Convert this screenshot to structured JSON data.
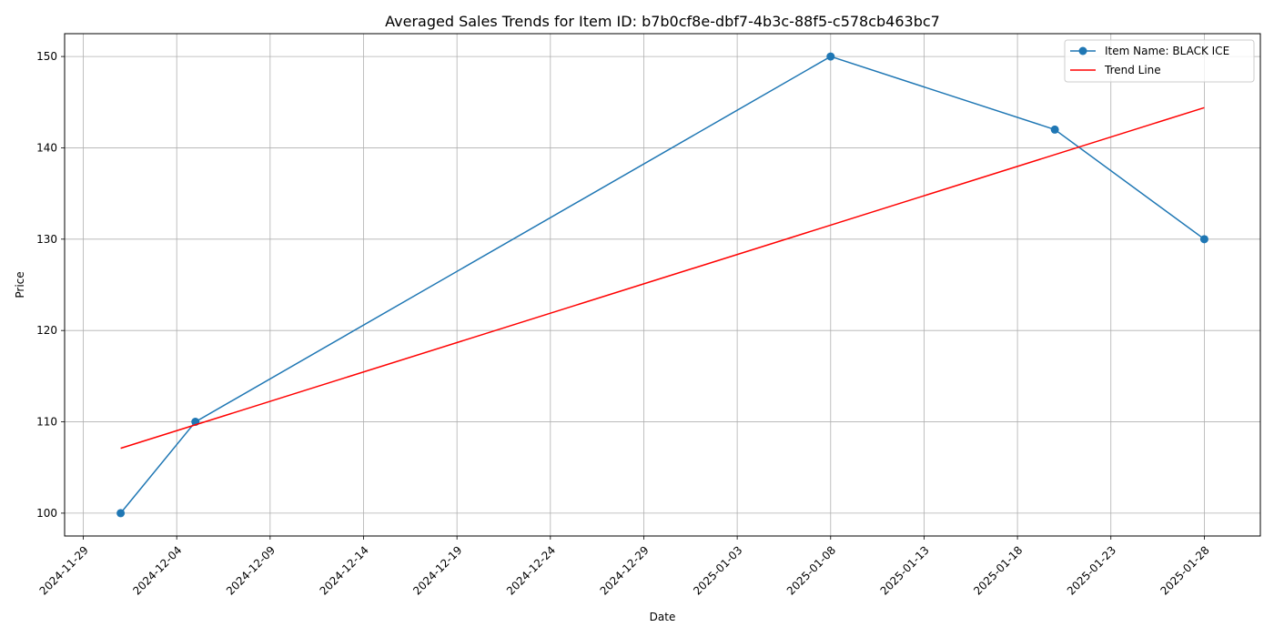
{
  "chart_data": {
    "type": "line",
    "title": "Averaged Sales Trends for Item ID: b7b0cf8e-dbf7-4b3c-88f5-c578cb463bc7",
    "xlabel": "Date",
    "ylabel": "Price",
    "grid": true,
    "legend_position": "top-right",
    "x_ticks": [
      "2024-11-29",
      "2024-12-04",
      "2024-12-09",
      "2024-12-14",
      "2024-12-19",
      "2024-12-24",
      "2024-12-29",
      "2025-01-03",
      "2025-01-08",
      "2025-01-13",
      "2025-01-18",
      "2025-01-23",
      "2025-01-28"
    ],
    "y_ticks": [
      100,
      110,
      120,
      130,
      140,
      150
    ],
    "xlim": [
      "2024-11-28",
      "2025-01-31"
    ],
    "ylim": [
      97.5,
      152.5
    ],
    "series": [
      {
        "name": "Item Name: BLACK ICE",
        "color": "#1f77b4",
        "marker": "circle",
        "points": [
          {
            "x": "2024-12-01",
            "y": 100
          },
          {
            "x": "2024-12-05",
            "y": 110
          },
          {
            "x": "2025-01-08",
            "y": 150
          },
          {
            "x": "2025-01-20",
            "y": 142
          },
          {
            "x": "2025-01-28",
            "y": 130
          }
        ]
      },
      {
        "name": "Trend Line",
        "color": "#ff0000",
        "marker": "none",
        "points": [
          {
            "x": "2024-12-01",
            "y": 107.1
          },
          {
            "x": "2025-01-28",
            "y": 144.4
          }
        ]
      }
    ]
  }
}
